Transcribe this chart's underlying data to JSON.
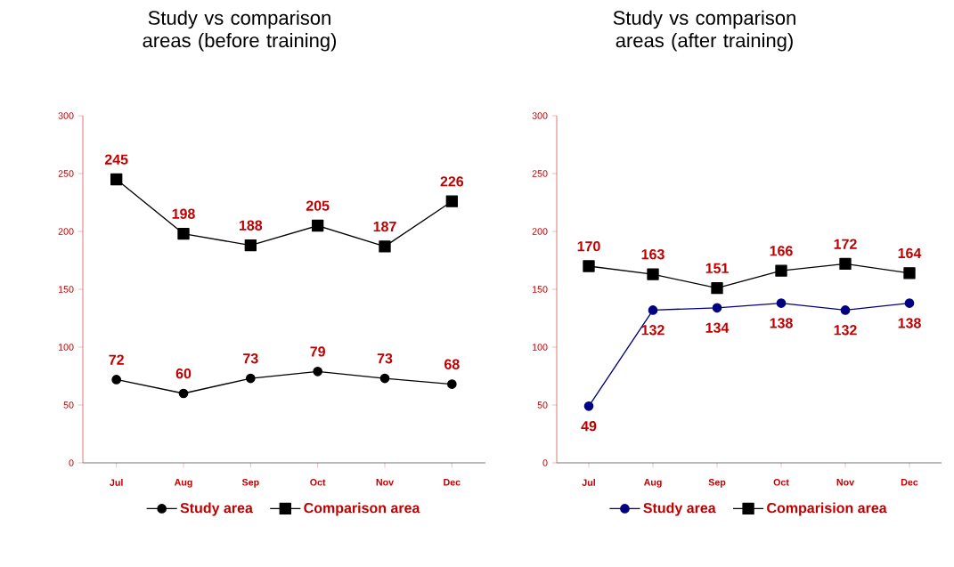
{
  "chart_data": [
    {
      "type": "line",
      "title": "Study vs comparison areas (before training)",
      "categories": [
        "Jul",
        "Aug",
        "Sep",
        "Oct",
        "Nov",
        "Dec"
      ],
      "series": [
        {
          "name": "Study area",
          "color": "#000000",
          "marker": "circle",
          "values": [
            72,
            60,
            73,
            79,
            73,
            68
          ]
        },
        {
          "name": "Comparison area",
          "color": "#000000",
          "marker": "square",
          "values": [
            245,
            198,
            188,
            205,
            187,
            226
          ]
        }
      ],
      "ylim": [
        0,
        300
      ],
      "yticks": [
        0,
        50,
        100,
        150,
        200,
        250,
        300
      ],
      "data_labels": true,
      "legend": "bottom",
      "grid": false
    },
    {
      "type": "line",
      "title": "Study vs comparison areas (after training)",
      "categories": [
        "Jul",
        "Aug",
        "Sep",
        "Oct",
        "Nov",
        "Dec"
      ],
      "series": [
        {
          "name": "Study area",
          "color": "#000080",
          "marker": "circle",
          "values": [
            49,
            132,
            134,
            138,
            132,
            138
          ]
        },
        {
          "name": "Comparision area",
          "color": "#000000",
          "marker": "square",
          "values": [
            170,
            163,
            151,
            166,
            172,
            164
          ]
        }
      ],
      "ylim": [
        0,
        300
      ],
      "yticks": [
        0,
        50,
        100,
        150,
        200,
        250,
        300
      ],
      "data_labels": true,
      "legend": "bottom",
      "grid": false
    }
  ]
}
